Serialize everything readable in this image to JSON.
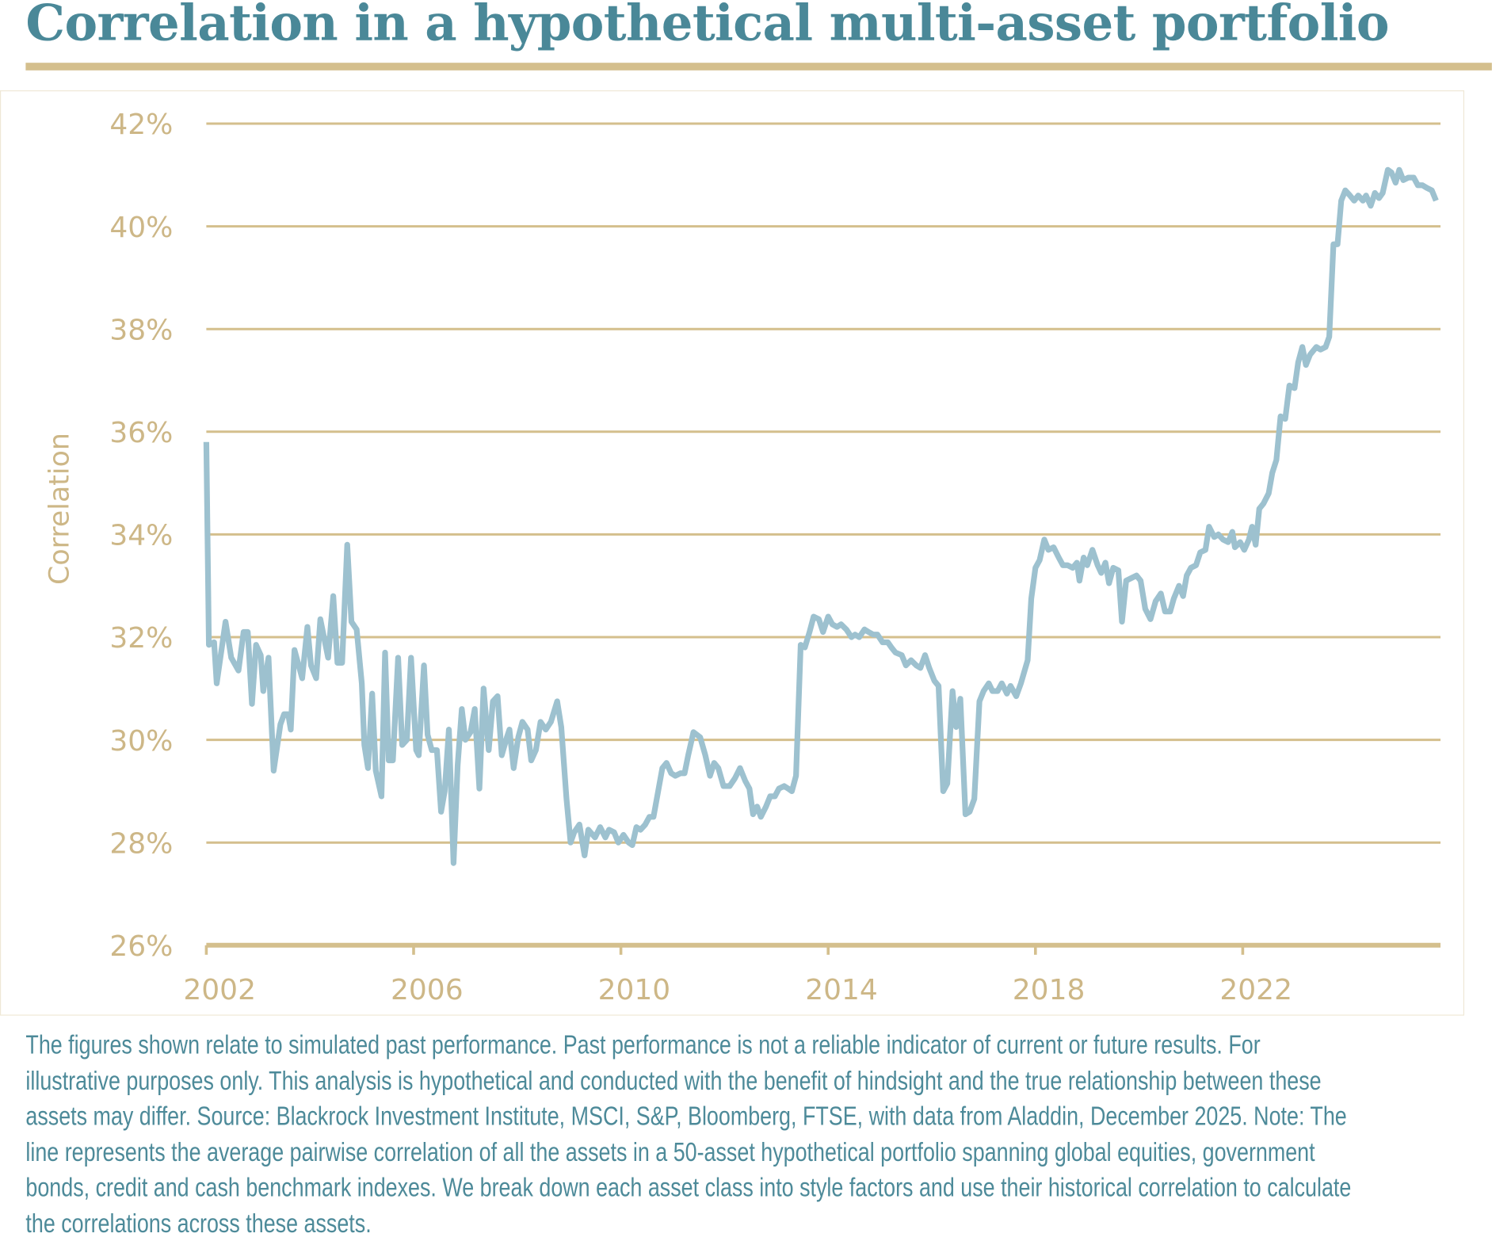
{
  "title": "Correlation in a hypothetical multi-asset portfolio",
  "colors": {
    "title": "#4a8898",
    "gold": "#d4bf8d",
    "line": "#9dc1cf",
    "footnote": "#4d8a99"
  },
  "chart_data": {
    "type": "line",
    "title": "Correlation in a hypothetical multi-asset portfolio",
    "ylabel": "Correlation",
    "xlabel": "",
    "ylim": [
      26,
      42
    ],
    "xlim": [
      2002,
      2025.8
    ],
    "yticks": [
      "42%",
      "40%",
      "38%",
      "36%",
      "34%",
      "32%",
      "30%",
      "28%",
      "26%"
    ],
    "ytick_values": [
      42,
      40,
      38,
      36,
      34,
      32,
      30,
      28,
      26
    ],
    "xticks": [
      "2002",
      "2006",
      "2010",
      "2014",
      "2018",
      "2022"
    ],
    "xtick_values": [
      2002,
      2006,
      2010,
      2014,
      2018,
      2022
    ],
    "grid": "horizontal",
    "series": [
      {
        "x": [
          2002.0,
          2002.05,
          2002.15,
          2002.2,
          2002.37,
          2002.48,
          2002.62,
          2002.72,
          2002.8,
          2002.88,
          2002.96,
          2003.05,
          2003.1,
          2003.2,
          2003.3,
          2003.43,
          2003.5,
          2003.58,
          2003.63,
          2003.7,
          2003.85,
          2003.95,
          2004.02,
          2004.12,
          2004.2,
          2004.35,
          2004.45,
          2004.53,
          2004.62,
          2004.72,
          2004.8,
          2004.9,
          2005.0,
          2005.05,
          2005.12,
          2005.2,
          2005.27,
          2005.38,
          2005.45,
          2005.52,
          2005.6,
          2005.7,
          2005.78,
          2005.87,
          2005.95,
          2006.05,
          2006.1,
          2006.2,
          2006.27,
          2006.35,
          2006.45,
          2006.53,
          2006.6,
          2006.68,
          2006.77,
          2006.85,
          2006.93,
          2007.0,
          2007.1,
          2007.18,
          2007.27,
          2007.35,
          2007.45,
          2007.53,
          2007.62,
          2007.7,
          2007.8,
          2007.85,
          2007.93,
          2008.02,
          2008.1,
          2008.2,
          2008.27,
          2008.36,
          2008.45,
          2008.55,
          2008.65,
          2008.77,
          2008.85,
          2008.95,
          2009.03,
          2009.1,
          2009.2,
          2009.3,
          2009.37,
          2009.5,
          2009.6,
          2009.7,
          2009.77,
          2009.87,
          2009.95,
          2010.05,
          2010.15,
          2010.22,
          2010.3,
          2010.38,
          2010.47,
          2010.55,
          2010.63,
          2010.72,
          2010.8,
          2010.88,
          2010.97,
          2011.05,
          2011.15,
          2011.23,
          2011.3,
          2011.4,
          2011.53,
          2011.63,
          2011.72,
          2011.8,
          2011.88,
          2011.98,
          2012.1,
          2012.2,
          2012.3,
          2012.4,
          2012.48,
          2012.55,
          2012.63,
          2012.7,
          2012.8,
          2012.88,
          2012.97,
          2013.05,
          2013.15,
          2013.23,
          2013.3,
          2013.38,
          2013.47,
          2013.55,
          2013.64,
          2013.72,
          2013.82,
          2013.9,
          2014.0,
          2014.08,
          2014.17,
          2014.25,
          2014.35,
          2014.45,
          2014.52,
          2014.6,
          2014.7,
          2014.78,
          2014.87,
          2014.95,
          2015.05,
          2015.15,
          2015.22,
          2015.3,
          2015.42,
          2015.5,
          2015.6,
          2015.7,
          2015.78,
          2015.87,
          2015.95,
          2016.05,
          2016.13,
          2016.22,
          2016.3,
          2016.4,
          2016.47,
          2016.55,
          2016.65,
          2016.73,
          2016.82,
          2016.92,
          2017.0,
          2017.1,
          2017.17,
          2017.27,
          2017.35,
          2017.45,
          2017.52,
          2017.63,
          2017.72,
          2017.85,
          2017.92,
          2018.0,
          2018.08,
          2018.17,
          2018.25,
          2018.35,
          2018.45,
          2018.53,
          2018.62,
          2018.72,
          2018.8,
          2018.85,
          2018.93,
          2019.0,
          2019.1,
          2019.2,
          2019.27,
          2019.35,
          2019.42,
          2019.5,
          2019.6,
          2019.67,
          2019.75,
          2019.85,
          2019.95,
          2020.03,
          2020.12,
          2020.22,
          2020.32,
          2020.42,
          2020.5,
          2020.6,
          2020.67,
          2020.77,
          2020.85,
          2020.92,
          2021.0,
          2021.1,
          2021.18,
          2021.28,
          2021.35,
          2021.45,
          2021.53,
          2021.62,
          2021.72,
          2021.8,
          2021.85,
          2021.95,
          2022.03,
          2022.12,
          2022.18,
          2022.25,
          2022.32,
          2022.4,
          2022.5,
          2022.57,
          2022.65,
          2022.73,
          2022.82,
          2022.9,
          2023.0,
          2023.07,
          2023.15,
          2023.22,
          2023.3,
          2023.42,
          2023.5,
          2023.6,
          2023.67,
          2023.75,
          2023.83,
          2023.9,
          2023.98,
          2024.07,
          2024.15,
          2024.23,
          2024.32,
          2024.38,
          2024.47,
          2024.55,
          2024.63,
          2024.7,
          2024.8,
          2024.87,
          2024.95,
          2025.02,
          2025.1,
          2025.2,
          2025.3,
          2025.38,
          2025.47,
          2025.55,
          2025.65,
          2025.73
        ],
        "y": [
          35.8,
          31.85,
          31.9,
          31.1,
          32.3,
          31.6,
          31.35,
          32.1,
          32.1,
          30.7,
          31.85,
          31.65,
          30.95,
          31.6,
          29.4,
          30.3,
          30.5,
          30.5,
          30.2,
          31.75,
          31.2,
          32.2,
          31.45,
          31.2,
          32.35,
          31.6,
          32.8,
          31.5,
          31.5,
          33.8,
          32.3,
          32.15,
          31.1,
          29.9,
          29.45,
          30.9,
          29.4,
          28.9,
          31.7,
          29.6,
          29.6,
          31.6,
          29.9,
          30.0,
          31.6,
          29.8,
          29.7,
          31.45,
          30.1,
          29.8,
          29.8,
          28.6,
          29.0,
          30.2,
          27.6,
          29.5,
          30.6,
          30.0,
          30.15,
          30.6,
          29.05,
          31.0,
          29.8,
          30.75,
          30.85,
          29.7,
          30.05,
          30.2,
          29.45,
          30.05,
          30.35,
          30.2,
          29.6,
          29.8,
          30.35,
          30.2,
          30.35,
          30.75,
          30.25,
          28.85,
          28.0,
          28.2,
          28.35,
          27.75,
          28.25,
          28.1,
          28.3,
          28.1,
          28.25,
          28.2,
          28.0,
          28.15,
          28.0,
          27.95,
          28.3,
          28.25,
          28.35,
          28.5,
          28.5,
          29.0,
          29.45,
          29.55,
          29.35,
          29.3,
          29.35,
          29.35,
          29.7,
          30.15,
          30.05,
          29.7,
          29.3,
          29.55,
          29.45,
          29.1,
          29.1,
          29.25,
          29.45,
          29.2,
          29.05,
          28.55,
          28.7,
          28.5,
          28.7,
          28.9,
          28.9,
          29.05,
          29.1,
          29.05,
          29.0,
          29.3,
          31.85,
          31.8,
          32.1,
          32.4,
          32.35,
          32.1,
          32.4,
          32.25,
          32.2,
          32.25,
          32.15,
          32.0,
          32.05,
          32.0,
          32.15,
          32.1,
          32.05,
          32.05,
          31.9,
          31.9,
          31.8,
          31.7,
          31.65,
          31.45,
          31.55,
          31.45,
          31.4,
          31.65,
          31.4,
          31.15,
          31.05,
          29.0,
          29.15,
          30.95,
          30.25,
          30.8,
          28.55,
          28.6,
          28.85,
          30.75,
          30.95,
          31.1,
          30.95,
          30.95,
          31.1,
          30.9,
          31.05,
          30.85,
          31.1,
          31.55,
          32.75,
          33.35,
          33.5,
          33.9,
          33.7,
          33.75,
          33.55,
          33.4,
          33.4,
          33.35,
          33.45,
          33.1,
          33.55,
          33.4,
          33.7,
          33.4,
          33.25,
          33.45,
          33.05,
          33.35,
          33.3,
          32.3,
          33.1,
          33.15,
          33.2,
          33.1,
          32.55,
          32.35,
          32.7,
          32.85,
          32.5,
          32.5,
          32.75,
          33.0,
          32.8,
          33.2,
          33.35,
          33.4,
          33.65,
          33.7,
          34.15,
          33.95,
          34.0,
          33.9,
          33.85,
          34.05,
          33.75,
          33.85,
          33.7,
          33.9,
          34.15,
          33.8,
          34.5,
          34.6,
          34.8,
          35.2,
          35.45,
          36.3,
          36.25,
          36.9,
          36.85,
          37.35,
          37.65,
          37.3,
          37.5,
          37.65,
          37.6,
          37.65,
          37.85,
          39.65,
          39.65,
          40.5,
          40.7,
          40.6,
          40.5,
          40.6,
          40.5,
          40.6,
          40.4,
          40.65,
          40.55,
          40.65,
          41.1,
          41.05,
          40.85,
          41.1,
          40.9,
          40.95,
          40.95,
          40.8,
          40.8,
          40.75,
          40.7,
          40.5
        ]
      }
    ]
  },
  "footnote_lines": [
    "The figures shown relate to simulated past performance. Past performance is not a reliable indicator of current or future results. For",
    "illustrative purposes only. This analysis is hypothetical and conducted with the benefit of hindsight and the true relationship between these",
    "assets may differ. Source: Blackrock Investment Institute, MSCI, S&P, Bloomberg, FTSE, with data from Aladdin, December 2025. Note: The",
    "line represents the average pairwise correlation of all the assets in a 50-asset hypothetical portfolio spanning global equities, government",
    "bonds, credit and cash benchmark indexes. We break down each asset class into style factors and use their historical correlation to calculate",
    "the correlations across these assets."
  ]
}
